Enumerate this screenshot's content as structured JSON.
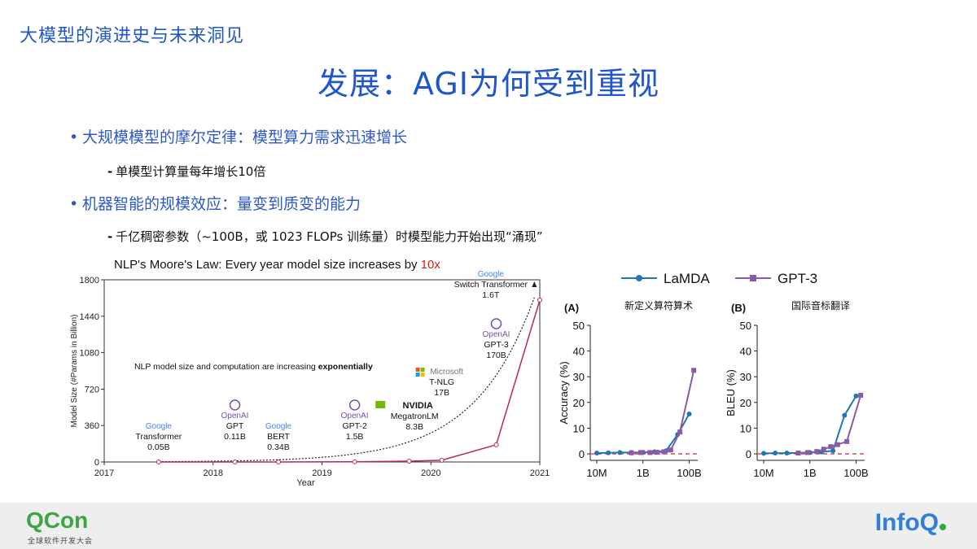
{
  "header": {
    "title": "大模型的演进史与未来洞见"
  },
  "slide_title": "发展：AGI为何受到重视",
  "bullets": [
    {
      "text": "大规模模型的摩尔定律：模型算力需求迅速增长",
      "sub": "单模型计算量每年增长10倍"
    },
    {
      "text": "机器智能的规模效应：量变到质变的能力",
      "sub": "千亿稠密参数（~100B，或 1023 FLOPs 训练量）时模型能力开始出现“涌现”"
    }
  ],
  "left_chart": {
    "title_main": "NLP's Moore's Law: Every year model size increases by ",
    "title_highlight": "10x",
    "annotation": "NLP model size and computation are increasing ",
    "annotation_bold": "exponentially"
  },
  "footer": {
    "qcon": "QCon",
    "qcon_sub": "全球软件开发大会",
    "infoq": "InfoQ"
  },
  "chart_data": [
    {
      "type": "line",
      "xlabel": "Year",
      "ylabel": "Model Size (#Params in Billion)",
      "ylim": [
        0,
        1800
      ],
      "xlim": [
        2017,
        2021
      ],
      "yticks": [
        0,
        360,
        720,
        1080,
        1440,
        1800
      ],
      "xticks": [
        2017,
        2018,
        2019,
        2020,
        2021
      ],
      "points": [
        {
          "x": 2017.5,
          "y": 0.05,
          "org": "Google",
          "model": "Transformer",
          "size": "0.05B"
        },
        {
          "x": 2018.2,
          "y": 0.11,
          "org": "OpenAI",
          "model": "GPT",
          "size": "0.11B"
        },
        {
          "x": 2018.6,
          "y": 0.34,
          "org": "Google",
          "model": "BERT",
          "size": "0.34B"
        },
        {
          "x": 2019.3,
          "y": 1.5,
          "org": "OpenAI",
          "model": "GPT-2",
          "size": "1.5B"
        },
        {
          "x": 2019.8,
          "y": 8.3,
          "org": "NVIDIA",
          "model": "MegatronLM",
          "size": "8.3B"
        },
        {
          "x": 2020.1,
          "y": 17,
          "org": "Microsoft",
          "model": "T-NLG",
          "size": "17B"
        },
        {
          "x": 2020.6,
          "y": 170,
          "org": "OpenAI",
          "model": "GPT-3",
          "size": "170B"
        },
        {
          "x": 2021.0,
          "y": 1600,
          "org": "Google",
          "model": "Switch Transformer",
          "size": "1.6T"
        }
      ]
    },
    {
      "type": "line",
      "panel": "(A)",
      "title": "新定义算符算术",
      "ylabel": "Accuracy (%)",
      "ylim": [
        0,
        50
      ],
      "yticks": [
        0,
        10,
        20,
        30,
        40,
        50
      ],
      "xticks": [
        "10M",
        "1B",
        "100B"
      ],
      "x_log10": [
        7,
        9,
        11
      ],
      "series": [
        {
          "name": "LaMDA",
          "color": "#1f77b4",
          "x_log10": [
            7.0,
            7.5,
            8.0,
            8.5,
            9.0,
            9.5,
            10.0,
            10.5,
            11.0
          ],
          "values": [
            0.3,
            0.4,
            0.5,
            0.5,
            0.6,
            0.8,
            1.2,
            7.5,
            15.5
          ]
        },
        {
          "name": "GPT-3",
          "color": "#8b5aa6",
          "x_log10": [
            8.5,
            8.9,
            9.3,
            9.6,
            9.9,
            10.2,
            10.6,
            11.2
          ],
          "values": [
            0.4,
            0.5,
            0.5,
            0.6,
            0.8,
            1.5,
            8.5,
            32.5
          ]
        }
      ]
    },
    {
      "type": "line",
      "panel": "(B)",
      "title": "国际音标翻译",
      "ylabel": "BLEU (%)",
      "ylim": [
        0,
        50
      ],
      "yticks": [
        0,
        10,
        20,
        30,
        40,
        50
      ],
      "xticks": [
        "10M",
        "1B",
        "100B"
      ],
      "x_log10": [
        7,
        9,
        11
      ],
      "series": [
        {
          "name": "LaMDA",
          "color": "#1f77b4",
          "x_log10": [
            7.0,
            7.5,
            8.0,
            8.5,
            9.0,
            9.5,
            10.0,
            10.5,
            11.0
          ],
          "values": [
            0.2,
            0.3,
            0.3,
            0.4,
            0.5,
            0.7,
            1.2,
            15.0,
            22.5
          ]
        },
        {
          "name": "GPT-3",
          "color": "#8b5aa6",
          "x_log10": [
            8.5,
            8.9,
            9.3,
            9.6,
            9.9,
            10.2,
            10.6,
            11.2
          ],
          "values": [
            0.3,
            0.5,
            0.9,
            1.8,
            2.8,
            3.6,
            4.8,
            22.8
          ]
        }
      ]
    }
  ]
}
